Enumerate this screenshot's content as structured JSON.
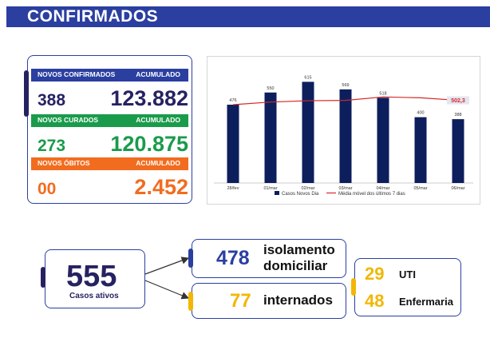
{
  "banner": {
    "title": "CONFIRMADOS",
    "color": "#2b3fa0"
  },
  "stats": {
    "confirmados": {
      "label": "NOVOS CONFIRMADOS",
      "acc_label": "ACUMULADO",
      "new": "388",
      "total": "123.882",
      "color": "#2b3fa0",
      "text_color": "#262262"
    },
    "curados": {
      "label": "NOVOS CURADOS",
      "acc_label": "ACUMULADO",
      "new": "273",
      "total": "120.875",
      "color": "#1a9b4b",
      "text_color": "#1a9b4b"
    },
    "obitos": {
      "label": "NOVOS ÓBITOS",
      "acc_label": "ACUMULADO",
      "new": "00",
      "total": "2.452",
      "color": "#f26c1f",
      "text_color": "#f26c1f"
    }
  },
  "chart_data": {
    "type": "bar",
    "categories": [
      "28/fev",
      "01/mar",
      "02/mar",
      "03/mar",
      "04/mar",
      "05/mar",
      "06/mar"
    ],
    "series": [
      {
        "name": "Casos Novos Dia",
        "type": "bar",
        "values": [
          476,
          550,
          615,
          569,
          518,
          400,
          388
        ],
        "color": "#0d1e5c"
      },
      {
        "name": "Média móvel dos últimos 7 dias",
        "type": "line",
        "values": [
          476,
          492,
          500,
          502,
          523,
          518,
          502.3
        ],
        "color": "#d62828"
      }
    ],
    "highlight_label": "502,3",
    "ylim": [
      0,
      680
    ],
    "title": "",
    "xlabel": "",
    "ylabel": ""
  },
  "flow": {
    "ativos": {
      "value": "555",
      "label": "Casos ativos"
    },
    "isolamento": {
      "value": "478",
      "label_line1": "isolamento",
      "label_line2": "domiciliar"
    },
    "internados": {
      "value": "77",
      "label": "internados"
    },
    "uti": {
      "value": "29",
      "label": "UTI"
    },
    "enfermaria": {
      "value": "48",
      "label": "Enfermaria"
    }
  },
  "colors": {
    "navy": "#262262",
    "blue": "#2b3fa0",
    "yellow": "#f2b705"
  }
}
